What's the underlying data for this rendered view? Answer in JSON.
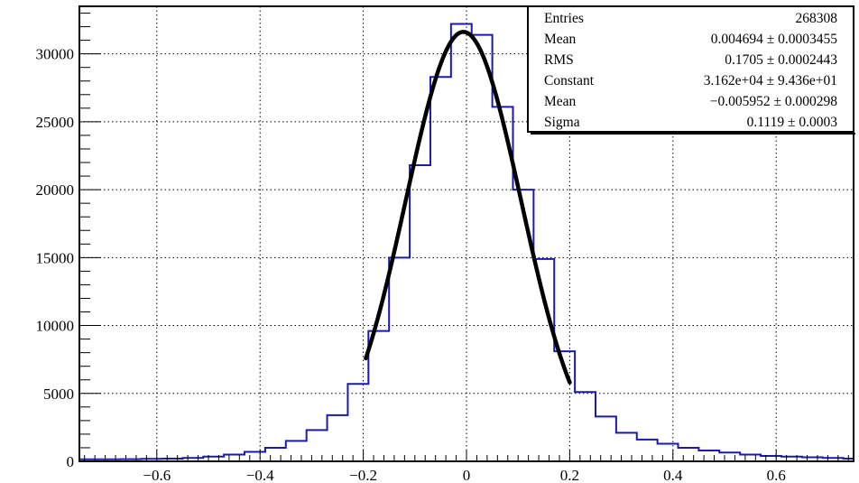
{
  "chart_data": {
    "type": "histogram",
    "title": "",
    "xlabel": "",
    "ylabel": "",
    "xlim": [
      -0.75,
      0.75
    ],
    "ylim": [
      0,
      33500
    ],
    "grid": true,
    "x_ticks": [
      -0.6,
      -0.4,
      -0.2,
      0,
      0.2,
      0.4,
      0.6
    ],
    "x_tick_labels": [
      "−0.6",
      "−0.4",
      "−0.2",
      "0",
      "0.2",
      "0.4",
      "0.6"
    ],
    "y_ticks": [
      0,
      5000,
      10000,
      15000,
      20000,
      25000,
      30000
    ],
    "y_tick_labels": [
      "0",
      "5000",
      "10000",
      "15000",
      "20000",
      "25000",
      "30000"
    ],
    "histogram": {
      "bin_edges": [
        -0.75,
        -0.71,
        -0.67,
        -0.63,
        -0.59,
        -0.55,
        -0.51,
        -0.47,
        -0.43,
        -0.39,
        -0.35,
        -0.31,
        -0.27,
        -0.23,
        -0.19,
        -0.15,
        -0.11,
        -0.07,
        -0.03,
        0.01,
        0.05,
        0.09,
        0.13,
        0.17,
        0.21,
        0.25,
        0.29,
        0.33,
        0.37,
        0.41,
        0.45,
        0.49,
        0.53,
        0.57,
        0.61,
        0.65,
        0.69,
        0.73,
        0.75
      ],
      "counts": [
        150,
        150,
        160,
        180,
        200,
        250,
        350,
        500,
        700,
        1000,
        1500,
        2300,
        3400,
        5700,
        9600,
        15000,
        21800,
        28300,
        32200,
        31400,
        26100,
        20000,
        14900,
        8100,
        5100,
        3300,
        2100,
        1600,
        1300,
        1000,
        800,
        650,
        500,
        400,
        350,
        300,
        250,
        200
      ],
      "color": "#1a1ab0"
    },
    "fit": {
      "function": "gaus",
      "range": [
        -0.195,
        0.2
      ],
      "constant": 31620,
      "mean": -0.005952,
      "sigma": 0.1119,
      "color": "#000000"
    },
    "stats_box": {
      "position": "top-right",
      "rows": [
        {
          "label": "Entries",
          "value": "268308"
        },
        {
          "label": "Mean",
          "value": "0.004694 ± 0.0003455"
        },
        {
          "label": "RMS",
          "value": "0.1705 ± 0.0002443"
        },
        {
          "label": "Constant",
          "value": "3.162e+04 ± 9.436e+01"
        },
        {
          "label": "Mean",
          "value": "−0.005952 ± 0.000298"
        },
        {
          "label": "Sigma",
          "value": "0.1119 ± 0.0003"
        }
      ]
    }
  }
}
